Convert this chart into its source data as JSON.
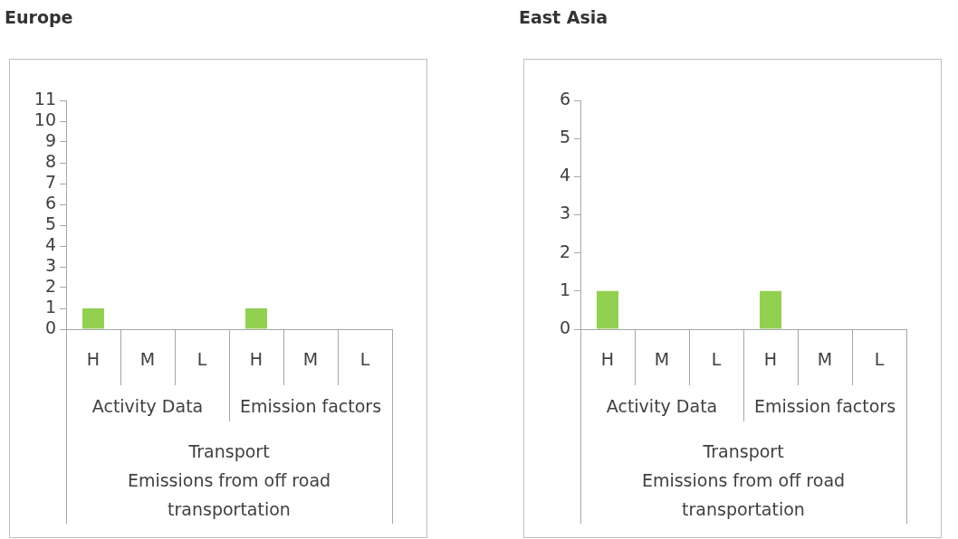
{
  "chart_data": [
    {
      "type": "bar",
      "title": "Europe",
      "categories": [
        "H",
        "M",
        "L",
        "H",
        "M",
        "L"
      ],
      "values": [
        1,
        0,
        0,
        1,
        0,
        0
      ],
      "color": "#92d050",
      "ylim": [
        0,
        11
      ],
      "yticks": [
        0,
        1,
        2,
        3,
        4,
        5,
        6,
        7,
        8,
        9,
        10,
        11
      ],
      "grid": false,
      "legend": false,
      "xlabel": "Transport\nEmissions from off road transportation",
      "annotations": [
        "Activity Data",
        "Emission factors"
      ]
    },
    {
      "type": "bar",
      "title": "East Asia",
      "categories": [
        "H",
        "M",
        "L",
        "H",
        "M",
        "L"
      ],
      "values": [
        1,
        0,
        0,
        1,
        0,
        0
      ],
      "color": "#92d050",
      "ylim": [
        0,
        6
      ],
      "yticks": [
        0,
        1,
        2,
        3,
        4,
        5,
        6
      ],
      "grid": false,
      "legend": false,
      "xlabel": "Transport\nEmissions from off road transportation",
      "annotations": [
        "Activity Data",
        "Emission factors"
      ]
    }
  ]
}
